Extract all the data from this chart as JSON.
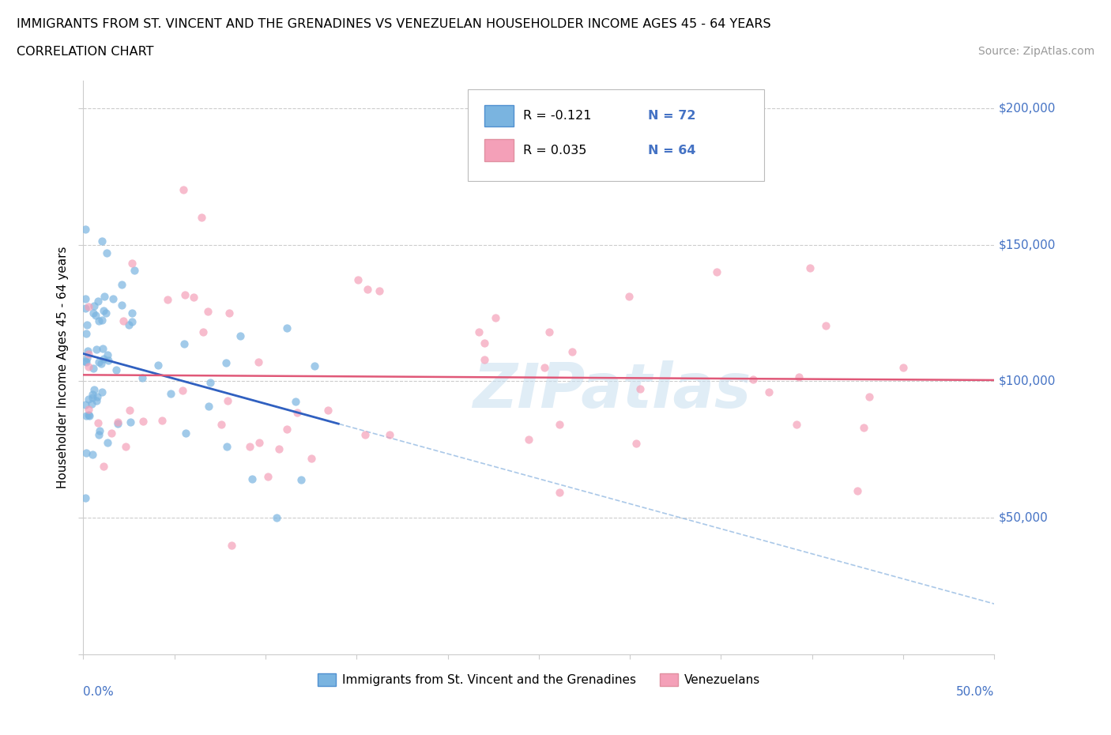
{
  "title_line1": "IMMIGRANTS FROM ST. VINCENT AND THE GRENADINES VS VENEZUELAN HOUSEHOLDER INCOME AGES 45 - 64 YEARS",
  "title_line2": "CORRELATION CHART",
  "source_text": "Source: ZipAtlas.com",
  "ylabel": "Householder Income Ages 45 - 64 years",
  "watermark": "ZIPatlas",
  "blue_color": "#7ab4e0",
  "pink_color": "#f4a0b8",
  "blue_trend_color": "#3060c0",
  "blue_dash_color": "#aac8e8",
  "pink_line_color": "#e05878",
  "xmin": 0.0,
  "xmax": 0.5,
  "ymin": 0,
  "ymax": 210000,
  "grid_color": "#cccccc",
  "right_label_color": "#4472c4",
  "legend_r_color": "#4472c4",
  "legend_n_color": "#4472c4"
}
